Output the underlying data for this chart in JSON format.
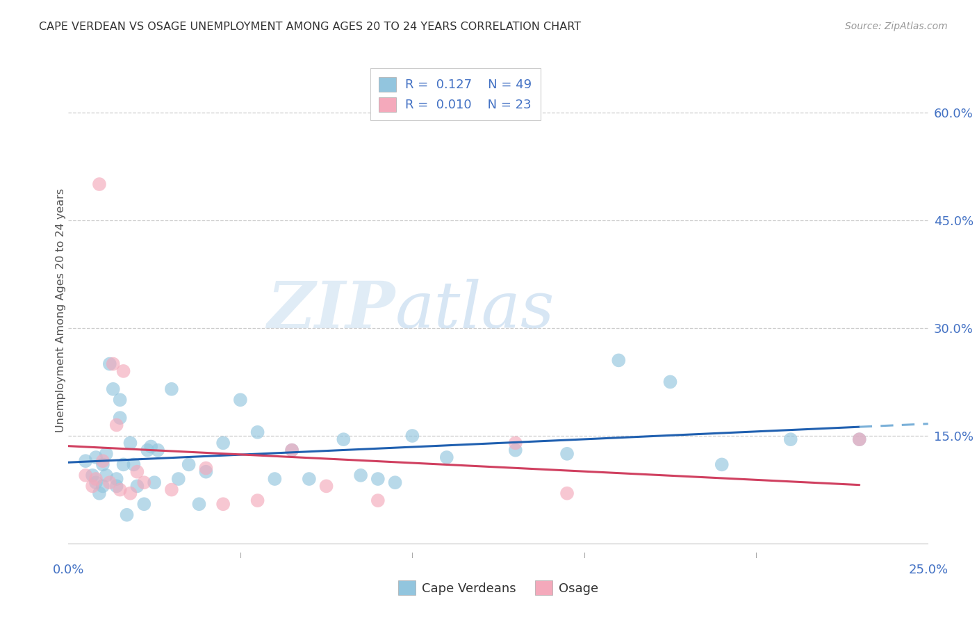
{
  "title": "CAPE VERDEAN VS OSAGE UNEMPLOYMENT AMONG AGES 20 TO 24 YEARS CORRELATION CHART",
  "source": "Source: ZipAtlas.com",
  "ylabel": "Unemployment Among Ages 20 to 24 years",
  "ylabel_ticks": [
    "60.0%",
    "45.0%",
    "30.0%",
    "15.0%"
  ],
  "ylabel_tick_vals": [
    0.6,
    0.45,
    0.3,
    0.15
  ],
  "xlim": [
    0.0,
    0.25
  ],
  "ylim": [
    -0.02,
    0.67
  ],
  "blue_color": "#92c5de",
  "pink_color": "#f4a9bb",
  "blue_line_color": "#2060b0",
  "pink_line_color": "#d04060",
  "dashed_line_color": "#7ab0d8",
  "watermark_zip": "ZIP",
  "watermark_atlas": "atlas",
  "cape_verdean_x": [
    0.005,
    0.007,
    0.008,
    0.008,
    0.009,
    0.01,
    0.01,
    0.011,
    0.011,
    0.012,
    0.013,
    0.014,
    0.014,
    0.015,
    0.015,
    0.016,
    0.017,
    0.018,
    0.019,
    0.02,
    0.022,
    0.023,
    0.024,
    0.025,
    0.026,
    0.03,
    0.032,
    0.035,
    0.038,
    0.04,
    0.045,
    0.05,
    0.055,
    0.06,
    0.065,
    0.07,
    0.08,
    0.085,
    0.09,
    0.095,
    0.1,
    0.11,
    0.13,
    0.145,
    0.16,
    0.175,
    0.19,
    0.21,
    0.23
  ],
  "cape_verdean_y": [
    0.115,
    0.095,
    0.12,
    0.085,
    0.07,
    0.11,
    0.08,
    0.125,
    0.095,
    0.25,
    0.215,
    0.09,
    0.08,
    0.2,
    0.175,
    0.11,
    0.04,
    0.14,
    0.11,
    0.08,
    0.055,
    0.13,
    0.135,
    0.085,
    0.13,
    0.215,
    0.09,
    0.11,
    0.055,
    0.1,
    0.14,
    0.2,
    0.155,
    0.09,
    0.13,
    0.09,
    0.145,
    0.095,
    0.09,
    0.085,
    0.15,
    0.12,
    0.13,
    0.125,
    0.255,
    0.225,
    0.11,
    0.145,
    0.145
  ],
  "osage_x": [
    0.005,
    0.007,
    0.008,
    0.009,
    0.01,
    0.012,
    0.013,
    0.014,
    0.015,
    0.016,
    0.018,
    0.02,
    0.022,
    0.03,
    0.04,
    0.045,
    0.055,
    0.065,
    0.075,
    0.09,
    0.13,
    0.145,
    0.23
  ],
  "osage_y": [
    0.095,
    0.08,
    0.09,
    0.5,
    0.115,
    0.085,
    0.25,
    0.165,
    0.075,
    0.24,
    0.07,
    0.1,
    0.085,
    0.075,
    0.105,
    0.055,
    0.06,
    0.13,
    0.08,
    0.06,
    0.14,
    0.07,
    0.145
  ]
}
